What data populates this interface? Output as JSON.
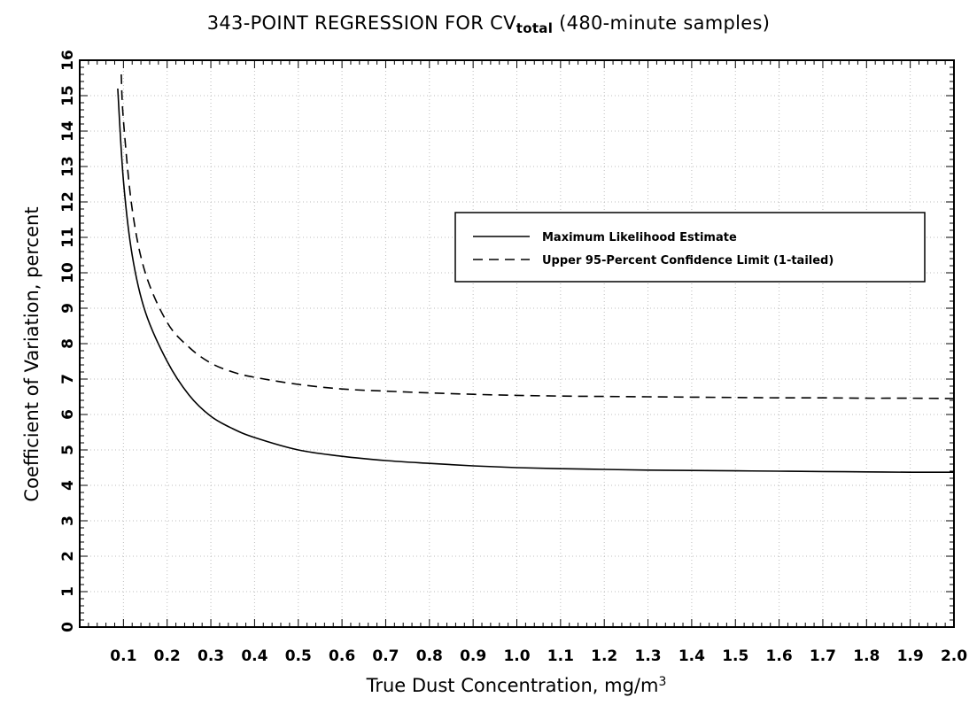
{
  "chart_data": {
    "type": "line",
    "title_main": "343-POINT REGRESSION FOR CV",
    "title_sub": "total",
    "title_tail": " (480-minute samples)",
    "xlabel_main": "True Dust Concentration, mg/m",
    "xlabel_sup": "3",
    "ylabel": "Coefficient of Variation, percent",
    "xlim": [
      0,
      2.0
    ],
    "ylim": [
      0,
      16
    ],
    "xticks": [
      "0.1",
      "0.2",
      "0.3",
      "0.4",
      "0.5",
      "0.6",
      "0.7",
      "0.8",
      "0.9",
      "1.0",
      "1.1",
      "1.2",
      "1.3",
      "1.4",
      "1.5",
      "1.6",
      "1.7",
      "1.8",
      "1.9",
      "2.0"
    ],
    "yticks": [
      "0",
      "1",
      "2",
      "3",
      "4",
      "5",
      "6",
      "7",
      "8",
      "9",
      "10",
      "11",
      "12",
      "13",
      "14",
      "15",
      "16"
    ],
    "grid": true,
    "legend_position": "upper-right",
    "series": [
      {
        "name": "Maximum Likelihood Estimate",
        "style": "solid",
        "x": [
          0.087,
          0.1,
          0.12,
          0.15,
          0.2,
          0.25,
          0.3,
          0.35,
          0.4,
          0.5,
          0.6,
          0.7,
          0.8,
          0.9,
          1.0,
          1.1,
          1.2,
          1.3,
          1.4,
          1.5,
          1.6,
          1.7,
          1.8,
          1.9,
          2.0
        ],
        "y": [
          15.2,
          12.6,
          10.5,
          8.9,
          7.5,
          6.55,
          5.95,
          5.6,
          5.35,
          5.0,
          4.82,
          4.7,
          4.62,
          4.55,
          4.5,
          4.47,
          4.45,
          4.43,
          4.42,
          4.41,
          4.4,
          4.39,
          4.38,
          4.37,
          4.37
        ]
      },
      {
        "name": "Upper 95-Percent Confidence Limit (1-tailed)",
        "style": "dashed",
        "x": [
          0.095,
          0.1,
          0.12,
          0.15,
          0.2,
          0.25,
          0.3,
          0.35,
          0.4,
          0.5,
          0.6,
          0.7,
          0.8,
          0.9,
          1.0,
          1.1,
          1.2,
          1.3,
          1.4,
          1.5,
          1.6,
          1.7,
          1.8,
          1.9,
          2.0
        ],
        "y": [
          15.6,
          14.3,
          11.8,
          10.0,
          8.6,
          7.9,
          7.45,
          7.2,
          7.05,
          6.85,
          6.72,
          6.66,
          6.61,
          6.57,
          6.54,
          6.52,
          6.51,
          6.5,
          6.49,
          6.48,
          6.47,
          6.47,
          6.46,
          6.46,
          6.45
        ]
      }
    ]
  }
}
